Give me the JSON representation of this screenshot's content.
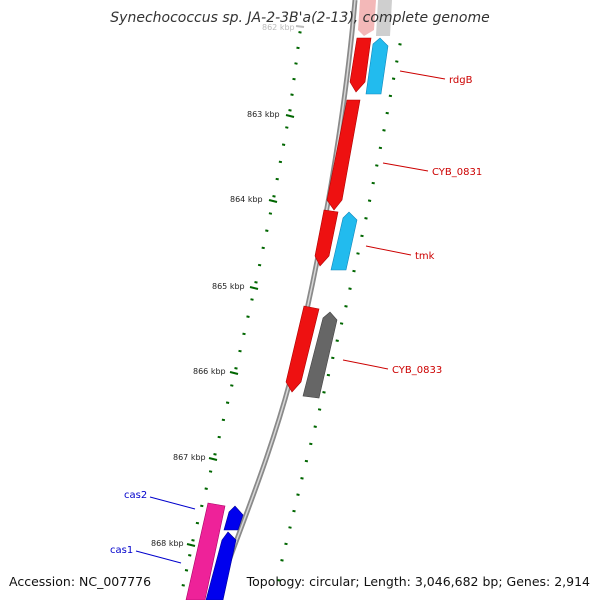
{
  "title": "Synechococcus sp. JA-2-3B'a(2-13), complete genome",
  "footer": {
    "accession": "Accession: NC_007776",
    "summary": "Topology: circular; Length: 3,046,682 bp; Genes: 2,914"
  },
  "ticks": [
    {
      "label": "862 kbp",
      "faded": true
    },
    {
      "label": "863 kbp"
    },
    {
      "label": "864 kbp"
    },
    {
      "label": "865 kbp"
    },
    {
      "label": "866 kbp"
    },
    {
      "label": "867 kbp"
    },
    {
      "label": "868 kbp"
    }
  ],
  "genes": [
    {
      "label": "rdgB",
      "color": "#cc0000"
    },
    {
      "label": "CYB_0831",
      "color": "#cc0000"
    },
    {
      "label": "tmk",
      "color": "#cc0000"
    },
    {
      "label": "CYB_0833",
      "color": "#cc0000"
    },
    {
      "label": "cas2",
      "color": "#0000cc"
    },
    {
      "label": "cas1",
      "color": "#0000cc"
    }
  ],
  "colors": {
    "red_cds": "#ee1111",
    "cyan_cds": "#22bbee",
    "gray_cds": "#666666",
    "pink_cds": "#ee2299",
    "blue_cds": "#0000ee",
    "tick_green": "#006600",
    "backbone": "#888888"
  }
}
